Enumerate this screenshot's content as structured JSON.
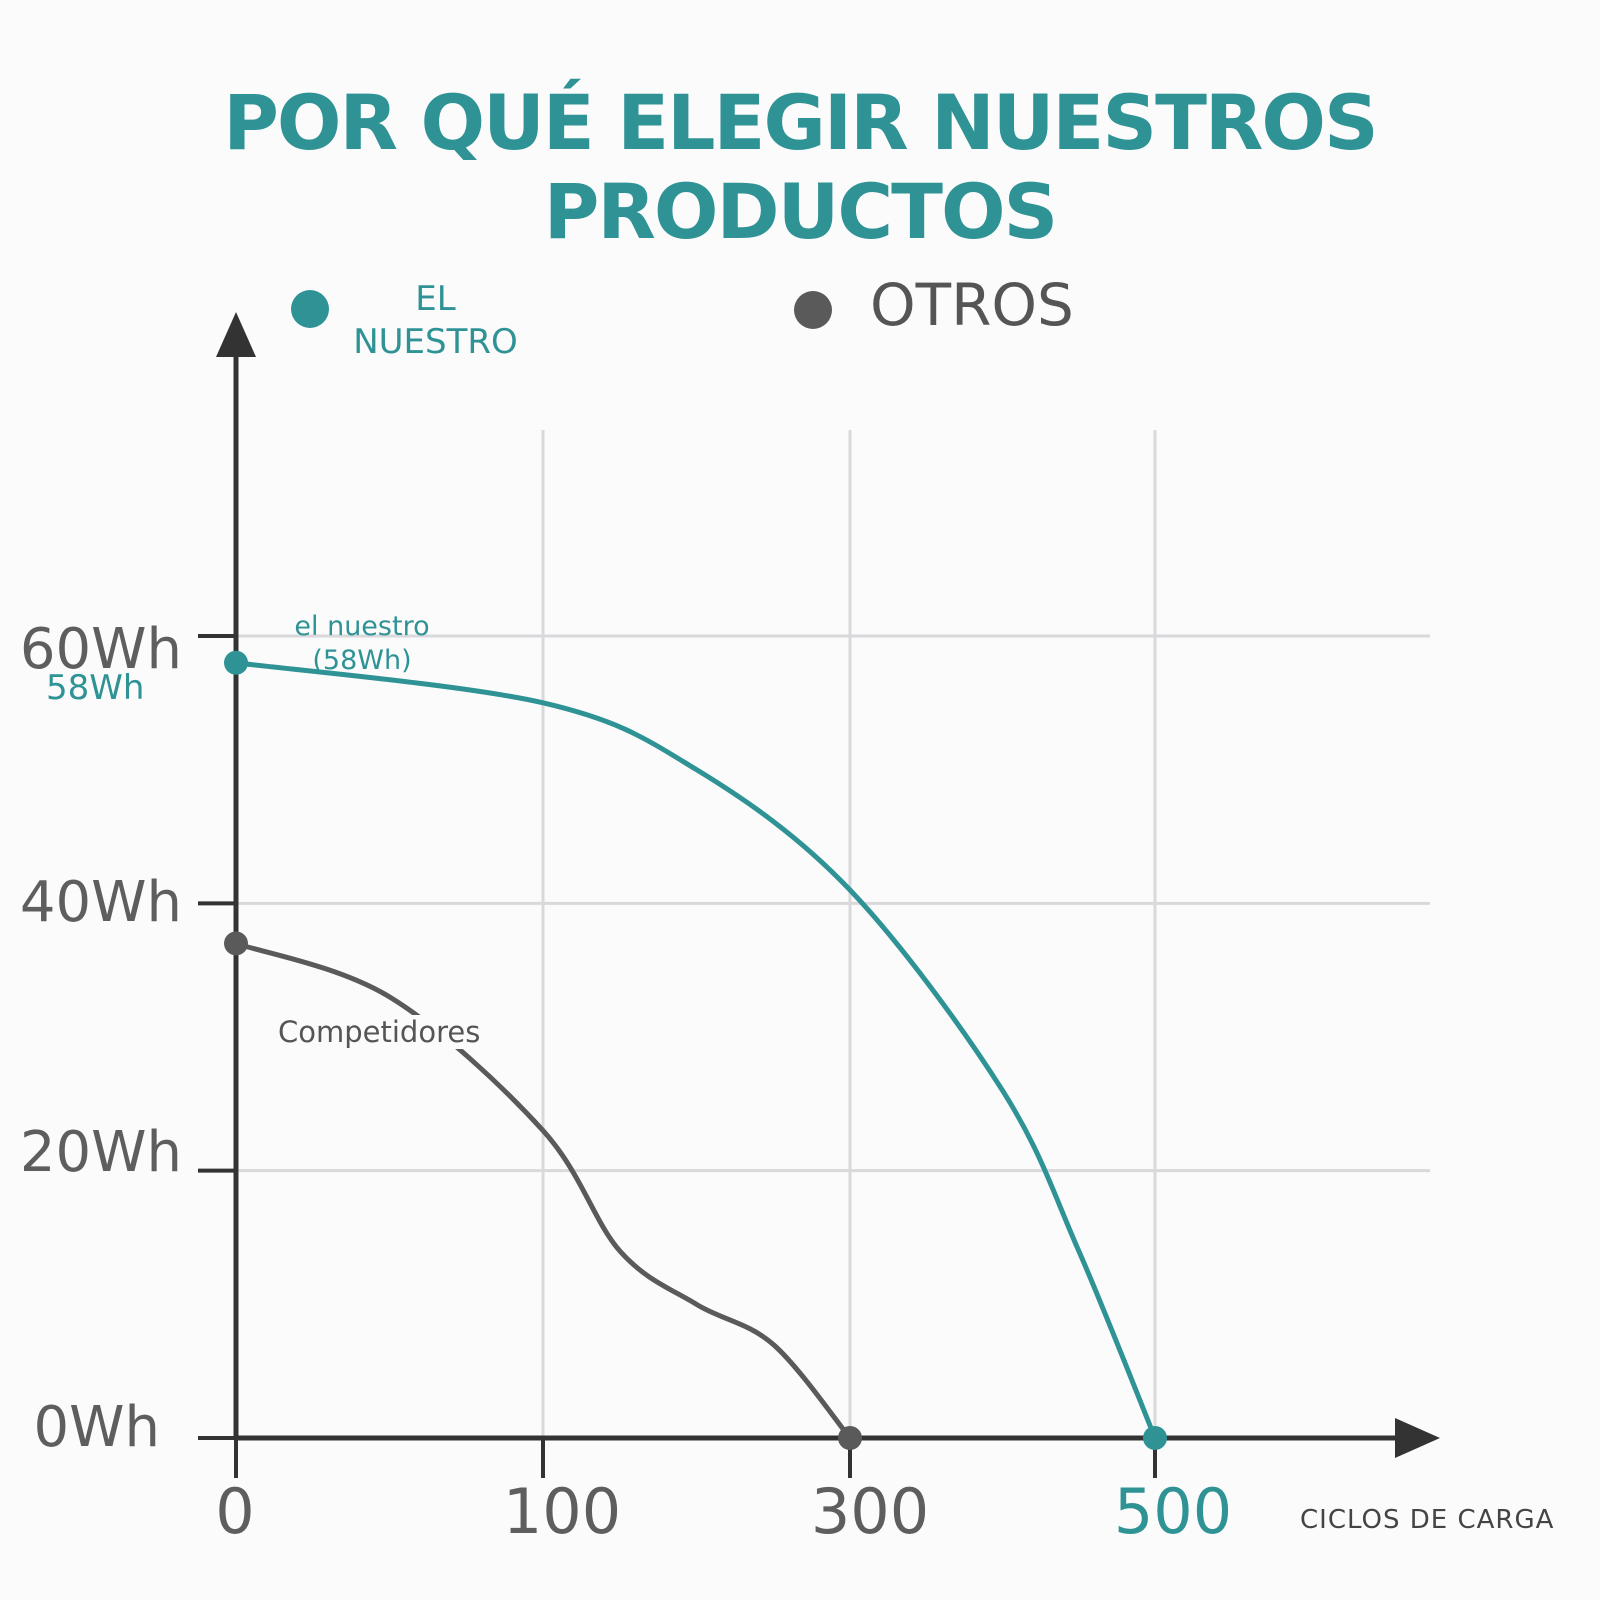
{
  "title": "POR QUÉ ELEGIR NUESTROS PRODUCTOS",
  "legend": {
    "ours": {
      "label_line1": "EL",
      "label_line2": "NUESTRO",
      "color": "#2f9396"
    },
    "others": {
      "label": "OTROS",
      "color": "#5a5a5a"
    }
  },
  "annotations": {
    "ours_value_line1": "el nuestro",
    "ours_value_line2": "(58Wh)",
    "ours_axis_value": "58Wh",
    "competitors": "Competidores"
  },
  "chart_data": {
    "type": "line",
    "title": "POR QUÉ ELEGIR NUESTROS PRODUCTOS",
    "xlabel": "CICLOS DE CARGA",
    "ylabel": "",
    "x_ticks": [
      "0",
      "100",
      "300",
      "500"
    ],
    "y_ticks": [
      "0Wh",
      "20Wh",
      "40Wh",
      "60Wh"
    ],
    "ylim": [
      0,
      80
    ],
    "series": [
      {
        "name": "EL NUESTRO",
        "color": "#2f9396",
        "x": [
          0,
          100,
          200,
          300,
          400,
          450,
          500
        ],
        "y": [
          58,
          55,
          50,
          41,
          26,
          14,
          0
        ]
      },
      {
        "name": "OTROS",
        "color": "#5a5a5a",
        "x": [
          0,
          50,
          100,
          150,
          200,
          250,
          300
        ],
        "y": [
          37,
          33,
          23,
          14,
          10,
          7,
          0
        ]
      }
    ],
    "grid": true,
    "legend_position": "top"
  }
}
